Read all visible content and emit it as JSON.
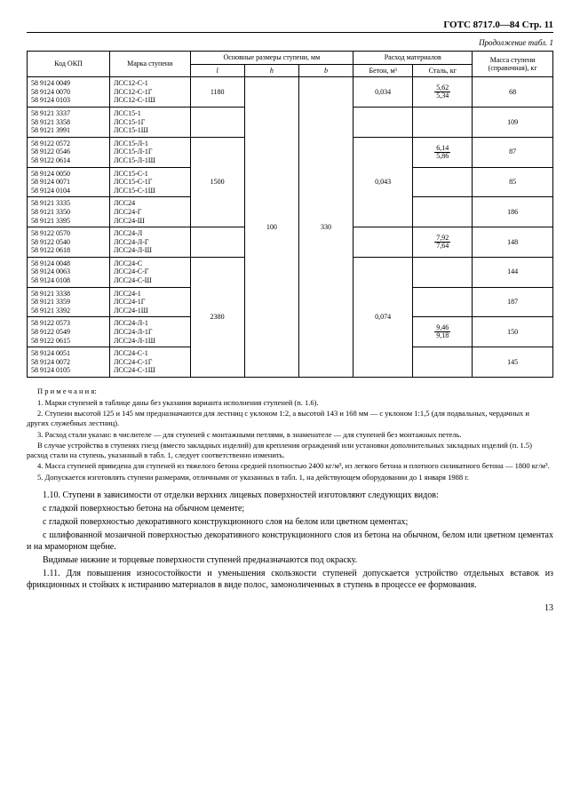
{
  "header": {
    "code": "ГОТС  8717.0—84  Стр. 11"
  },
  "continuation": "Продолжение табл. 1",
  "table": {
    "head": {
      "c1": "Код ОКП",
      "c2": "Марка ступени",
      "g3": "Основные размеры ступени, мм",
      "g3a": "l",
      "g3b": "h",
      "g3c": "b",
      "g4": "Расход материалов",
      "g4a": "Бетон, м³",
      "g4b": "Сталь, кг",
      "c5": "Масса ступени (справочная), кг"
    },
    "rows": [
      {
        "okp": [
          "58 9124 0049",
          "58 9124 0070",
          "58 9124 0103"
        ],
        "mark": [
          "ЛСС12-С-1",
          "ЛСС12-С-1Г",
          "ЛСС12-С-1Ш"
        ],
        "l": "1180",
        "beton": "0,034",
        "stal": {
          "n": "5,62",
          "d": "5,34"
        },
        "mass": "68"
      },
      {
        "okp": [
          "58 9121 3337",
          "58 9121 3358",
          "58 9121 3991"
        ],
        "mark": [
          "ЛСС15-1",
          "ЛСС15-1Г",
          "ЛСС15-1Ш"
        ],
        "mass": "109"
      },
      {
        "okp": [
          "58 9122 0572",
          "58 9122 0546",
          "58 9122 0614"
        ],
        "mark": [
          "ЛСС15-Л-1",
          "ЛСС15-Л-1Г",
          "ЛСС15-Л-1Ш"
        ],
        "l": "1500",
        "beton": "0,043",
        "stal": {
          "n": "6,14",
          "d": "5,86"
        },
        "mass": "87"
      },
      {
        "okp": [
          "58 9124 0050",
          "58 9124 0071",
          "58 9124 0104"
        ],
        "mark": [
          "ЛСС15-С-1",
          "ЛСС15-С-1Г",
          "ЛСС15-С-1Ш"
        ],
        "mass": "85"
      },
      {
        "okp": [
          "58 9121 3335",
          "58 9121 3350",
          "58 9121 3395"
        ],
        "mark": [
          "ЛСС24",
          "ЛСС24-Г",
          "ЛСС24-Ш"
        ],
        "h": "100",
        "b": "330",
        "mass": "186"
      },
      {
        "okp": [
          "58 9122 0570",
          "58 9122 0540",
          "58 9122 0618"
        ],
        "mark": [
          "ЛСС24-Л",
          "ЛСС24-Л-Г",
          "ЛСС24-Л-Ш"
        ],
        "stal": {
          "n": "7,92",
          "d": "7,64"
        },
        "mass": "148"
      },
      {
        "okp": [
          "58 9124 0048",
          "58 9124 0063",
          "58 9124 0108"
        ],
        "mark": [
          "ЛСС24-С",
          "ЛСС24-С-Г",
          "ЛСС24-С-Ш"
        ],
        "l": "2380",
        "beton": "0,074",
        "mass": "144"
      },
      {
        "okp": [
          "58 9121 3338",
          "58 9121 3359",
          "58 9121 3392"
        ],
        "mark": [
          "ЛСС24-1",
          "ЛСС24-1Г",
          "ЛСС24-1Ш"
        ],
        "mass": "187"
      },
      {
        "okp": [
          "58 9122 0573",
          "58 9122 0549",
          "58 9122 0615"
        ],
        "mark": [
          "ЛСС24-Л-1",
          "ЛСС24-Л-1Г",
          "ЛСС24-Л-1Ш"
        ],
        "stal": {
          "n": "9,46",
          "d": "9,18"
        },
        "mass": "150"
      },
      {
        "okp": [
          "58 9124 0051",
          "58 9124 0072",
          "58 9124 0105"
        ],
        "mark": [
          "ЛСС24-С-1",
          "ЛСС24-С-1Г",
          "ЛСС24-С-1Ш"
        ],
        "mass": "145"
      }
    ]
  },
  "notes": {
    "title": "П р и м е ч а н и я:",
    "n1": "1. Марки ступеней в таблице даны без указания варианта исполнения ступеней (п. 1.6).",
    "n2": "2. Ступени высотой 125 и 145 мм предназначаются для лестниц с уклоном 1:2, а высотой 143 и 168 мм — с уклоном 1:1,5 (для подвальных, чердачных и других служебных лестниц).",
    "n3": "3. Расход стали указан: в числителе — для ступеней с монтажными петлями, в знаменателе — для ступеней без монтажных петель.",
    "n3a": "В случае устройства в ступенях гнезд (вместо закладных изделий) для крепления ограждений или установки дополнительных закладных изделий (п. 1.5) расход стали на ступень, указанный в табл. 1, следует соответственно изменить.",
    "n4": "4. Масса ступеней приведена для ступеней из тяжелого бетона средней плотностью 2400 кг/м³, из легкого бетона и плотного силикатного бетона — 1800 кг/м³.",
    "n5": "5. Допускается изготовлять ступени размерами, отличными от указанных в табл. 1, на действующем оборудовании до 1 января 1988 г."
  },
  "body": {
    "p1": "1.10. Ступени в зависимости от отделки верхних лицевых поверхностей изготовляют следующих видов:",
    "p2": "с гладкой поверхностью бетона на обычном цементе;",
    "p3": "с гладкой поверхностью декоративного конструкционного слоя на белом или цветном цементах;",
    "p4": "с шлифованной мозаичной поверхностью декоративного конструкционного слоя из бетона на обычном, белом или цветном цементах и на мраморном щебне.",
    "p5": "Видимые нижние и торцевые поверхности ступеней предназначаются под окраску.",
    "p6": "1.11. Для повышения износостойкости и уменьшения скользкости ступеней допускается устройство отдельных вставок из фрикционных и стойких к истиранию материалов в виде полос, замоноличенных в ступень в процессе ее формования."
  },
  "footer": {
    "page": "13"
  }
}
